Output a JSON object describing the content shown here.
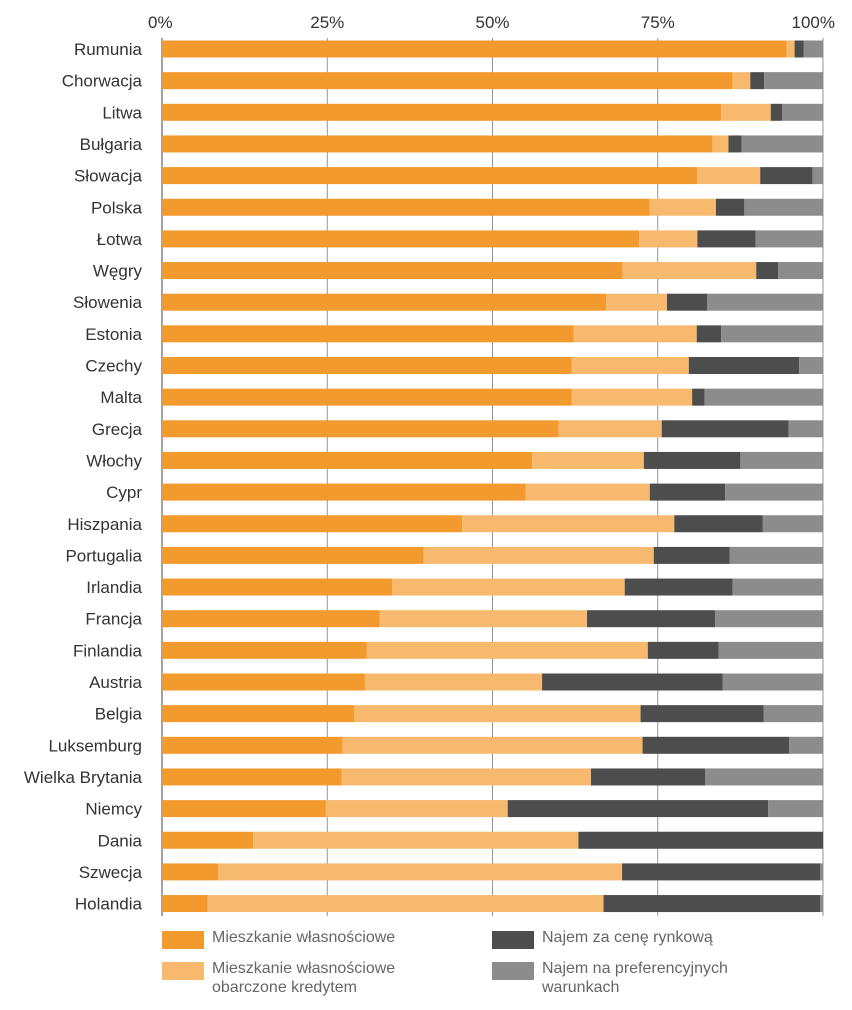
{
  "chart_data": {
    "type": "bar",
    "orientation": "horizontal",
    "stacked": true,
    "xlim": [
      0,
      100
    ],
    "x_ticks": [
      "0%",
      "25%",
      "50%",
      "75%",
      "100%"
    ],
    "x_tick_position": "top",
    "grid": true,
    "legend_placement": "bottom",
    "categories": [
      "Rumunia",
      "Chorwacja",
      "Litwa",
      "Bułgaria",
      "Słowacja",
      "Polska",
      "Łotwa",
      "Węgry",
      "Słowenia",
      "Estonia",
      "Czechy",
      "Malta",
      "Grecja",
      "Włochy",
      "Cypr",
      "Hiszpania",
      "Portugalia",
      "Irlandia",
      "Francja",
      "Finlandia",
      "Austria",
      "Belgia",
      "Luksemburg",
      "Wielka Brytania",
      "Niemcy",
      "Dania",
      "Szwecja",
      "Holandia"
    ],
    "series": [
      {
        "name": "Mieszkanie własnościowe",
        "color": "#F29A2E",
        "values": [
          94.5,
          86.3,
          84.6,
          83.3,
          81.0,
          73.8,
          72.2,
          69.7,
          67.2,
          62.3,
          62.0,
          62.0,
          60.0,
          56.0,
          55.0,
          45.4,
          39.6,
          34.8,
          32.9,
          31.0,
          30.7,
          29.1,
          27.3,
          27.2,
          24.8,
          13.8,
          8.5,
          6.9
        ]
      },
      {
        "name": "Mieszkanie własnościowe obarczone kredytem",
        "color": "#F7B96D",
        "values": [
          1.2,
          2.7,
          7.5,
          2.4,
          9.5,
          10.0,
          8.8,
          20.2,
          9.2,
          18.6,
          17.7,
          18.2,
          15.6,
          16.9,
          18.8,
          32.1,
          34.8,
          35.2,
          31.4,
          42.5,
          26.8,
          43.3,
          45.4,
          37.7,
          27.5,
          49.2,
          61.1,
          59.9
        ]
      },
      {
        "name": "Najem za cenę rynkową",
        "color": "#4D4D4D",
        "values": [
          1.4,
          2.1,
          1.7,
          2.0,
          7.9,
          4.3,
          8.8,
          3.3,
          6.1,
          3.7,
          16.7,
          1.9,
          19.2,
          14.6,
          11.4,
          13.4,
          11.5,
          16.3,
          19.4,
          10.7,
          27.3,
          18.6,
          22.2,
          17.3,
          39.4,
          37.0,
          30.0,
          32.8
        ]
      },
      {
        "name": "Najem na preferencyjnych warunkach",
        "color": "#8C8C8C",
        "values": [
          2.9,
          8.9,
          6.2,
          12.3,
          1.6,
          11.9,
          10.2,
          6.8,
          17.5,
          15.4,
          3.6,
          17.9,
          5.2,
          12.5,
          14.8,
          9.1,
          14.1,
          13.7,
          16.3,
          15.8,
          15.2,
          9.0,
          5.1,
          17.8,
          8.3,
          0.0,
          0.4,
          0.4
        ]
      }
    ]
  }
}
